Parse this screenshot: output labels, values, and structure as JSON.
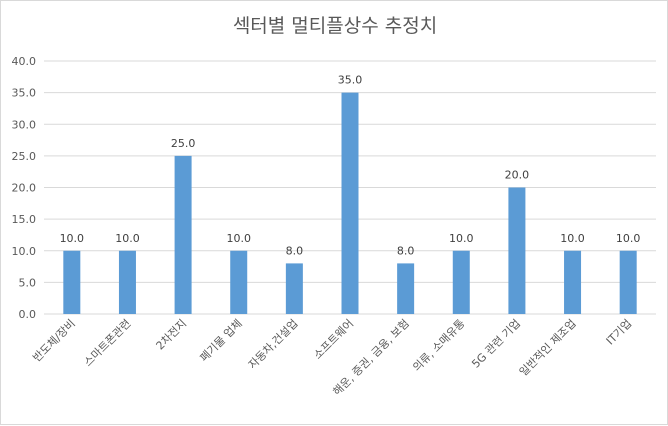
{
  "chart_data": {
    "type": "bar",
    "title": "섹터별 멀티플상수 추정치",
    "xlabel": "",
    "ylabel": "",
    "categories": [
      "반도체/장비",
      "스마트폰관련",
      "2차전지",
      "폐기물 업체",
      "자동차,건설업",
      "소프트웨어",
      "해운, 증권, 금융, 보험",
      "의류, 소매유통",
      "5G 관련 기업",
      "일반적인 제조업",
      "IT기업"
    ],
    "values": [
      10.0,
      10.0,
      25.0,
      10.0,
      8.0,
      35.0,
      8.0,
      10.0,
      20.0,
      10.0,
      10.0
    ],
    "data_labels": [
      "10.0",
      "10.0",
      "25.0",
      "10.0",
      "8.0",
      "35.0",
      "8.0",
      "10.0",
      "20.0",
      "10.0",
      "10.0"
    ],
    "ylim": [
      0,
      40
    ],
    "yticks": [
      0,
      5,
      10,
      15,
      20,
      25,
      30,
      35,
      40
    ],
    "ytick_labels": [
      "0.0",
      "5.0",
      "10.0",
      "15.0",
      "20.0",
      "25.0",
      "30.0",
      "35.0",
      "40.0"
    ],
    "grid": true,
    "legend": "none",
    "colors": {
      "bar": "#5b9bd5",
      "grid": "#d9d9d9",
      "text": "#595959"
    }
  }
}
